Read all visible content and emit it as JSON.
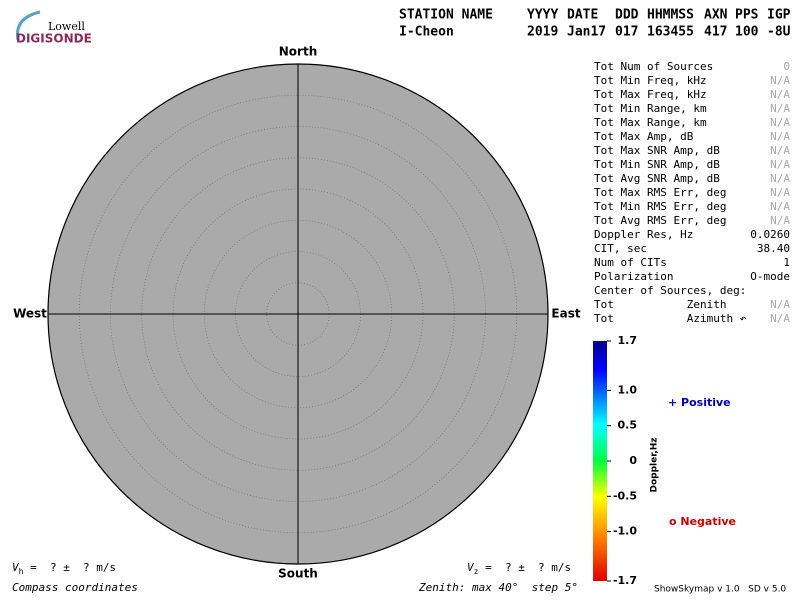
{
  "logo": {
    "top": "Lowell",
    "bottom": "DIGISONDE"
  },
  "header": {
    "labels": [
      "STATION NAME",
      "YYYY",
      "DATE",
      "DDD",
      "HHMMSS",
      "AXN",
      "PPS",
      "IGP"
    ],
    "values": [
      "I-Cheon",
      "2019",
      "Jan17",
      "017",
      "163455",
      "417",
      "100",
      "-8U"
    ]
  },
  "compass": {
    "north": "North",
    "south": "South",
    "west": "West",
    "east": "East"
  },
  "stats": [
    {
      "label": "Tot Num of Sources",
      "value": "0"
    },
    {
      "label": "Tot Min Freq, kHz",
      "value": "N/A"
    },
    {
      "label": "Tot Max Freq, kHz",
      "value": "N/A"
    },
    {
      "label": "Tot Min Range, km",
      "value": "N/A"
    },
    {
      "label": "Tot Max Range, km",
      "value": "N/A"
    },
    {
      "label": "Tot Max Amp, dB",
      "value": "N/A"
    },
    {
      "label": "Tot Max SNR Amp, dB",
      "value": "N/A"
    },
    {
      "label": "Tot Min SNR Amp, dB",
      "value": "N/A"
    },
    {
      "label": "Tot Avg SNR Amp, dB",
      "value": "N/A"
    },
    {
      "label": "Tot Max RMS Err, deg",
      "value": "N/A"
    },
    {
      "label": "Tot Min RMS Err, deg",
      "value": "N/A"
    },
    {
      "label": "Tot Avg RMS Err, deg",
      "value": "N/A"
    },
    {
      "label": "Doppler Res, Hz",
      "value": "0.0260"
    },
    {
      "label": "CIT, sec",
      "value": "38.40"
    },
    {
      "label": "Num of CITs",
      "value": "1"
    },
    {
      "label": "Polarization",
      "value": "O-mode"
    },
    {
      "label": "Center of Sources, deg:"
    },
    {
      "label": "Tot           Zenith",
      "value": "N/A"
    },
    {
      "label": "Tot           Azimuth ↶",
      "value": "N/A"
    }
  ],
  "colorbar": {
    "title": "Doppler,Hz",
    "range": [
      -1.7,
      1.7
    ],
    "ticks": [
      1.7,
      {
        "value": 1,
        "label": "1.0"
      },
      0.5,
      0,
      -0.5,
      {
        "value": -1,
        "label": "-1.0"
      },
      -1.7
    ],
    "positive": "+ Positive",
    "negative": "o Negative"
  },
  "footer": {
    "vh": {
      "symbol": "V",
      "sub": "h",
      "text": " =  ? ±  ? m/s"
    },
    "vz": {
      "symbol": "V",
      "sub": "z",
      "text": " =  ? ±  ? m/s"
    },
    "coords": "Compass coordinates",
    "zenith": "Zenith: max 40°  step 5°",
    "version": "ShowSkymap v 1.0   SD v 5.0"
  }
}
